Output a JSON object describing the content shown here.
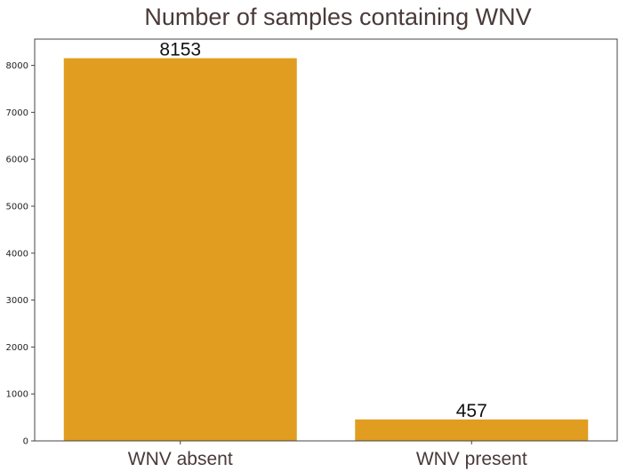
{
  "chart_data": {
    "type": "bar",
    "title": "Number of samples containing WNV",
    "xlabel": "",
    "ylabel": "",
    "categories": [
      "WNV absent",
      "WNV present"
    ],
    "values": [
      8153,
      457
    ],
    "data_labels": [
      "8153",
      "457"
    ],
    "ylim": [
      0,
      8560
    ],
    "yticks": [
      0,
      1000,
      2000,
      3000,
      4000,
      5000,
      6000,
      7000,
      8000
    ],
    "ytick_labels": [
      "0",
      "1000",
      "2000",
      "3000",
      "4000",
      "5000",
      "6000",
      "7000",
      "8000"
    ],
    "bar_color": "#e09d20",
    "grid": false,
    "legend": "none"
  }
}
